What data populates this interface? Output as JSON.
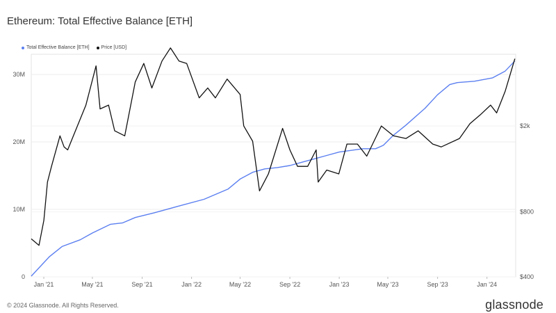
{
  "title": "Ethereum: Total Effective Balance [ETH]",
  "footer": {
    "copyright": "© 2024 Glassnode. All Rights Reserved.",
    "brand": "glassnode"
  },
  "colors": {
    "balance": "#5b7ff0",
    "price": "#111111",
    "grid": "#ececec"
  },
  "chart_data": {
    "type": "line",
    "title": "Ethereum: Total Effective Balance [ETH]",
    "legend_placement": "top-left",
    "grid": true,
    "x_ticks": [
      "Jan '21",
      "May '21",
      "Sep '21",
      "Jan '22",
      "May '22",
      "Sep '22",
      "Jan '23",
      "May '23",
      "Sep '23",
      "Jan '24"
    ],
    "y_left": {
      "ticks": [
        "0",
        "10M",
        "20M",
        "30M"
      ],
      "range": [
        0,
        33000000
      ]
    },
    "y_right": {
      "scale": "log",
      "ticks": [
        "$400",
        "$800",
        "$2k"
      ],
      "range": [
        400,
        4300
      ]
    },
    "series": [
      {
        "name": "Total Effective Balance [ETH]",
        "axis": "left",
        "x": [
          "2020-12-01",
          "2021-01-15",
          "2021-02-15",
          "2021-04-01",
          "2021-05-01",
          "2021-06-15",
          "2021-07-15",
          "2021-08-15",
          "2021-10-01",
          "2021-12-01",
          "2022-02-01",
          "2022-04-01",
          "2022-05-01",
          "2022-06-01",
          "2022-07-01",
          "2022-08-01",
          "2022-09-01",
          "2022-10-01",
          "2022-11-01",
          "2022-12-01",
          "2023-01-01",
          "2023-03-01",
          "2023-04-01",
          "2023-04-20",
          "2023-05-15",
          "2023-06-15",
          "2023-08-01",
          "2023-09-01",
          "2023-10-01",
          "2023-10-20",
          "2023-12-01",
          "2024-01-15",
          "2024-02-15",
          "2024-03-10"
        ],
        "values": [
          100000,
          3000000,
          4500000,
          5500000,
          6500000,
          7800000,
          8000000,
          8800000,
          9500000,
          10500000,
          11500000,
          13000000,
          14500000,
          15500000,
          16000000,
          16200000,
          16500000,
          17000000,
          17500000,
          18000000,
          18500000,
          19000000,
          19000000,
          19500000,
          21000000,
          22500000,
          25000000,
          27000000,
          28500000,
          28800000,
          29000000,
          29500000,
          30500000,
          32000000
        ]
      },
      {
        "name": "Price [USD]",
        "axis": "right",
        "x": [
          "2020-12-01",
          "2020-12-20",
          "2021-01-01",
          "2021-01-10",
          "2021-01-20",
          "2021-02-10",
          "2021-02-20",
          "2021-03-01",
          "2021-03-15",
          "2021-04-15",
          "2021-05-10",
          "2021-05-20",
          "2021-06-10",
          "2021-06-25",
          "2021-07-20",
          "2021-08-15",
          "2021-09-05",
          "2021-09-25",
          "2021-10-20",
          "2021-11-10",
          "2021-12-01",
          "2021-12-20",
          "2022-01-20",
          "2022-02-10",
          "2022-03-01",
          "2022-03-30",
          "2022-05-01",
          "2022-05-10",
          "2022-06-01",
          "2022-06-18",
          "2022-07-10",
          "2022-08-14",
          "2022-09-01",
          "2022-09-20",
          "2022-10-15",
          "2022-11-05",
          "2022-11-10",
          "2022-12-01",
          "2022-12-31",
          "2023-01-20",
          "2023-02-15",
          "2023-03-10",
          "2023-04-15",
          "2023-05-15",
          "2023-06-15",
          "2023-07-15",
          "2023-08-20",
          "2023-09-10",
          "2023-10-25",
          "2023-11-20",
          "2023-12-15",
          "2024-01-10",
          "2024-01-25",
          "2024-02-15",
          "2024-03-10"
        ],
        "values": [
          600,
          560,
          730,
          1100,
          1300,
          1800,
          1600,
          1550,
          1800,
          2500,
          3800,
          2400,
          2500,
          1900,
          1800,
          3200,
          3900,
          3000,
          4000,
          4600,
          4000,
          3900,
          2700,
          3000,
          2700,
          3300,
          2800,
          2000,
          1700,
          1000,
          1200,
          1950,
          1550,
          1300,
          1300,
          1550,
          1100,
          1250,
          1200,
          1650,
          1650,
          1450,
          2000,
          1800,
          1750,
          1900,
          1650,
          1600,
          1750,
          2050,
          2250,
          2500,
          2300,
          2900,
          4100
        ]
      }
    ]
  }
}
